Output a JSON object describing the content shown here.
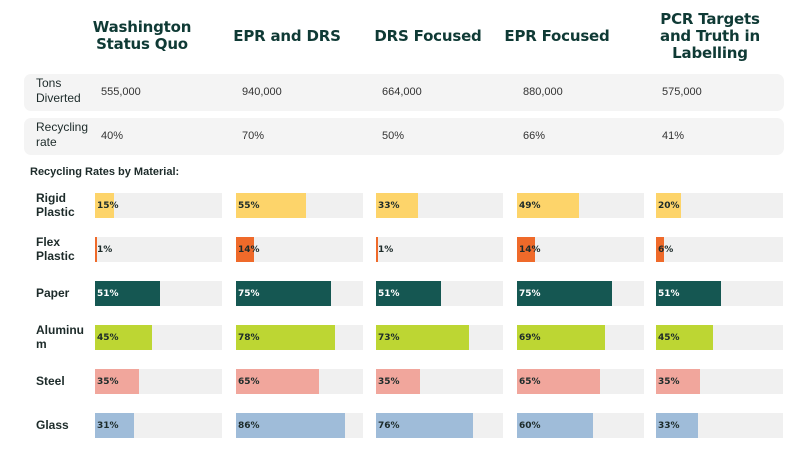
{
  "columns": [
    {
      "title": "Washington Status Quo",
      "tons_diverted": "555,000",
      "recycling_rate": "40%"
    },
    {
      "title": "EPR and DRS",
      "tons_diverted": "940,000",
      "recycling_rate": "70%"
    },
    {
      "title": "DRS Focused",
      "tons_diverted": "664,000",
      "recycling_rate": "50%"
    },
    {
      "title": "EPR Focused",
      "tons_diverted": "880,000",
      "recycling_rate": "66%"
    },
    {
      "title": "PCR Targets and Truth in Labelling",
      "tons_diverted": "575,000",
      "recycling_rate": "41%"
    }
  ],
  "summary_labels": {
    "tons_diverted": "Tons Diverted",
    "recycling_rate": "Recycling rate"
  },
  "section_title": "Recycling Rates by Material:",
  "chart_data": {
    "type": "bar",
    "orientation": "horizontal",
    "title": "Recycling Rates by Material:",
    "categories": [
      "Rigid Plastic",
      "Flex Plastic",
      "Paper",
      "Aluminum",
      "Steel",
      "Glass"
    ],
    "category_labels": [
      "Rigid Plastic",
      "Flex Plastic",
      "Paper",
      "Aluminu m",
      "Steel",
      "Glass"
    ],
    "scenarios": [
      "Washington Status Quo",
      "EPR and DRS",
      "DRS Focused",
      "EPR Focused",
      "PCR Targets and Truth in Labelling"
    ],
    "series": [
      {
        "name": "Washington Status Quo",
        "values": [
          15,
          1,
          51,
          45,
          35,
          31
        ]
      },
      {
        "name": "EPR and DRS",
        "values": [
          55,
          14,
          75,
          78,
          65,
          86
        ]
      },
      {
        "name": "DRS Focused",
        "values": [
          33,
          1,
          51,
          73,
          35,
          76
        ]
      },
      {
        "name": "EPR Focused",
        "values": [
          49,
          14,
          75,
          69,
          65,
          60
        ]
      },
      {
        "name": "PCR Targets and Truth in Labelling",
        "values": [
          20,
          6,
          51,
          45,
          35,
          33
        ]
      }
    ],
    "value_format": "percent",
    "xlim": [
      0,
      100
    ],
    "category_colors": {
      "Rigid Plastic": "#fdd46a",
      "Flex Plastic": "#ef6a2a",
      "Paper": "#155752",
      "Aluminum": "#bdd633",
      "Steel": "#f1a69c",
      "Glass": "#9fbcd9"
    },
    "track_color": "#f0f0f0",
    "light_label_categories": [
      "Paper"
    ]
  }
}
